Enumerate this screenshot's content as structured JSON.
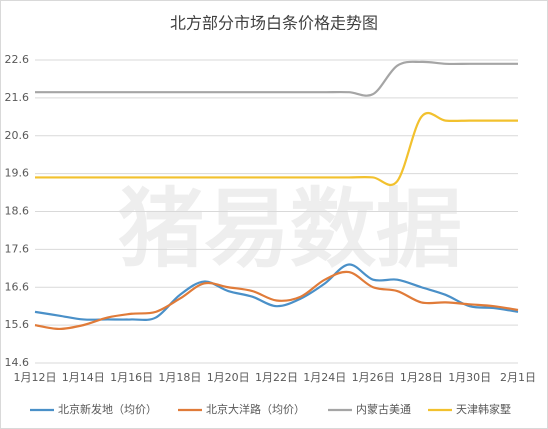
{
  "chart_data": {
    "type": "line",
    "title": "北方部分市场白条价格走势图",
    "watermark": "猪易数据",
    "categories": [
      "1月12日",
      null,
      "1月14日",
      null,
      "1月16日",
      null,
      "1月18日",
      null,
      "1月20日",
      null,
      "1月22日",
      null,
      "1月24日",
      null,
      "1月26日",
      null,
      "1月28日",
      null,
      "1月30日",
      null,
      "2月1日"
    ],
    "series": [
      {
        "name": "北京新发地（均价）",
        "color": "#4a90c8",
        "values": [
          15.95,
          15.85,
          15.75,
          15.75,
          15.75,
          15.8,
          16.4,
          16.75,
          16.5,
          16.35,
          16.1,
          16.3,
          16.7,
          17.2,
          16.8,
          16.8,
          16.6,
          16.4,
          16.1,
          16.05,
          15.95
        ]
      },
      {
        "name": "北京大洋路（均价）",
        "color": "#e07b39",
        "values": [
          15.6,
          15.5,
          15.6,
          15.8,
          15.9,
          15.95,
          16.3,
          16.7,
          16.6,
          16.5,
          16.25,
          16.35,
          16.8,
          17.0,
          16.6,
          16.5,
          16.2,
          16.2,
          16.15,
          16.1,
          16.0
        ]
      },
      {
        "name": "内蒙古美通",
        "color": "#a5a5a5",
        "values": [
          21.75,
          21.75,
          21.75,
          21.75,
          21.75,
          21.75,
          21.75,
          21.75,
          21.75,
          21.75,
          21.75,
          21.75,
          21.75,
          21.75,
          21.7,
          22.45,
          22.55,
          22.5,
          22.5,
          22.5,
          22.5
        ]
      },
      {
        "name": "天津韩家墅",
        "color": "#f2c12e",
        "values": [
          19.5,
          19.5,
          19.5,
          19.5,
          19.5,
          19.5,
          19.5,
          19.5,
          19.5,
          19.5,
          19.5,
          19.5,
          19.5,
          19.5,
          19.5,
          19.4,
          21.1,
          21.0,
          21.0,
          21.0,
          21.0
        ]
      }
    ],
    "ylim": [
      14.6,
      22.6
    ],
    "yticks": [
      14.6,
      15.6,
      16.6,
      17.6,
      18.6,
      19.6,
      20.6,
      21.6,
      22.6
    ],
    "grid": true,
    "legend": "bottom"
  }
}
